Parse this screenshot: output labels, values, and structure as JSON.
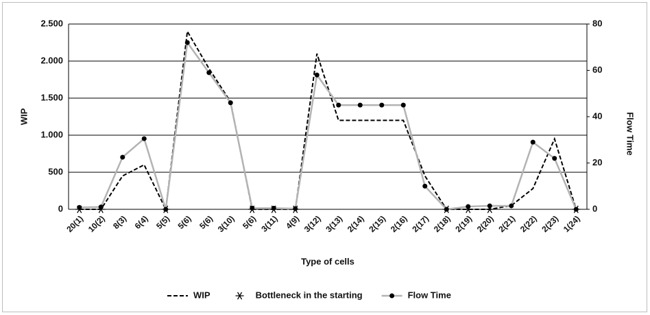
{
  "chart_data": {
    "type": "line",
    "categories": [
      "20(1)",
      "10(2)",
      "8(3)",
      "6(4)",
      "5(5)",
      "5(6)",
      "5(6)",
      "3(10)",
      "5(6)",
      "3(11)",
      "4(9)",
      "3(12)",
      "3(13)",
      "2(14)",
      "2(15)",
      "2(16)",
      "2(17)",
      "2(18)",
      "2(19)",
      "2(20)",
      "2(21)",
      "2(22)",
      "2(23)",
      "1(24)"
    ],
    "x_label": "Type of cells",
    "y_label": "WIP",
    "y2_label": "Flow Time",
    "ylim": [
      0,
      2500
    ],
    "yticks": [
      0,
      500,
      {
        "value": 1000,
        "label": "1.000"
      },
      {
        "value": 1500,
        "label": "1.500"
      },
      {
        "value": 2000,
        "label": "2.000"
      },
      {
        "value": 2500,
        "label": "2.500"
      }
    ],
    "y2lim": [
      0,
      80
    ],
    "y2ticks": [
      0,
      20,
      40,
      60,
      80
    ],
    "grid": true,
    "legend": "bottom",
    "series": [
      {
        "name": "WIP",
        "color": "#000000",
        "style": "dashed",
        "values": [
          0,
          0,
          450,
          600,
          0,
          2400,
          1900,
          1450,
          0,
          0,
          0,
          2100,
          1200,
          1200,
          1200,
          1200,
          450,
          0,
          0,
          0,
          50,
          280,
          950,
          0
        ]
      },
      {
        "name": "Bottleneck in the starting",
        "color": "#000000",
        "style": "star",
        "values": [
          0,
          0,
          null,
          null,
          0,
          null,
          null,
          null,
          0,
          0,
          0,
          null,
          null,
          null,
          null,
          null,
          null,
          0,
          0,
          0,
          null,
          null,
          null,
          0
        ]
      },
      {
        "name": "Flow Time",
        "color": "#b3b3b3",
        "style": "line-dot",
        "axis": "y2",
        "values": [
          0.8,
          1,
          22.5,
          30.5,
          0,
          72,
          59,
          46,
          0.5,
          0.5,
          0.3,
          58,
          45,
          45,
          45,
          45,
          10,
          0,
          1.2,
          1.5,
          1.5,
          29,
          22,
          0
        ]
      }
    ]
  }
}
